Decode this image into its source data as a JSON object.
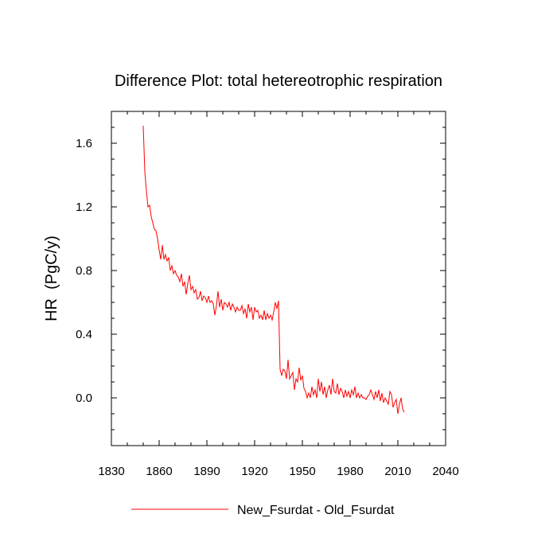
{
  "chart_data": {
    "type": "line",
    "title": "Difference Plot: total hetereotrophic respiration",
    "xlabel": "",
    "ylabel": "HR  (PgC/y)",
    "xlim": [
      1830,
      2040
    ],
    "ylim": [
      -0.3,
      1.8
    ],
    "x_ticks": [
      1830,
      1860,
      1890,
      1920,
      1950,
      1980,
      2010,
      2040
    ],
    "y_ticks": [
      0.0,
      0.4,
      0.8,
      1.2,
      1.6
    ],
    "y_tick_labels": [
      "0.0",
      "0.4",
      "0.8",
      "1.2",
      "1.6"
    ],
    "legend_position": "bottom-center",
    "series": [
      {
        "name": "New_Fsurdat - Old_Fsurdat",
        "color": "#ff0000",
        "x_start": 1850,
        "x_step": 1,
        "values": [
          1.71,
          1.42,
          1.3,
          1.2,
          1.21,
          1.14,
          1.1,
          1.06,
          1.05,
          1.0,
          0.93,
          0.87,
          0.96,
          0.87,
          0.9,
          0.86,
          0.88,
          0.8,
          0.83,
          0.78,
          0.8,
          0.77,
          0.76,
          0.73,
          0.78,
          0.7,
          0.73,
          0.65,
          0.72,
          0.77,
          0.68,
          0.7,
          0.66,
          0.68,
          0.62,
          0.63,
          0.67,
          0.61,
          0.64,
          0.63,
          0.6,
          0.64,
          0.6,
          0.61,
          0.59,
          0.52,
          0.58,
          0.67,
          0.57,
          0.62,
          0.55,
          0.6,
          0.59,
          0.57,
          0.6,
          0.55,
          0.59,
          0.57,
          0.54,
          0.57,
          0.55,
          0.55,
          0.58,
          0.53,
          0.56,
          0.5,
          0.59,
          0.54,
          0.57,
          0.49,
          0.57,
          0.54,
          0.55,
          0.5,
          0.52,
          0.49,
          0.55,
          0.49,
          0.53,
          0.5,
          0.52,
          0.49,
          0.54,
          0.6,
          0.56,
          0.61,
          0.18,
          0.14,
          0.18,
          0.17,
          0.12,
          0.24,
          0.12,
          0.14,
          0.16,
          0.05,
          0.12,
          0.1,
          0.19,
          0.11,
          0.14,
          0.06,
          0.04,
          0.0,
          0.03,
          0.0,
          0.07,
          0.02,
          0.05,
          0.0,
          0.12,
          0.04,
          0.1,
          0.02,
          0.07,
          0.0,
          0.05,
          0.08,
          0.02,
          0.12,
          0.04,
          0.03,
          0.09,
          0.02,
          0.06,
          0.04,
          0.0,
          0.05,
          0.01,
          0.04,
          0.0,
          0.05,
          0.02,
          0.07,
          0.0,
          0.03,
          0.0,
          0.02,
          0.0,
          0.0,
          -0.01,
          0.01,
          0.02,
          0.05,
          0.02,
          -0.01,
          0.04,
          0.0,
          0.05,
          -0.02,
          0.03,
          -0.03,
          0.0,
          -0.02,
          -0.04,
          0.04,
          0.02,
          -0.06,
          -0.03,
          -0.01,
          -0.1,
          -0.04,
          0.0,
          -0.07,
          -0.09
        ]
      }
    ]
  }
}
